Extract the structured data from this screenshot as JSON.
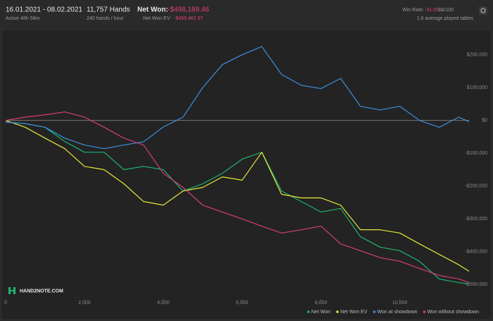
{
  "header": {
    "date_range": "16.01.2021 - 08.02.2021",
    "active": "Active 48h 58m",
    "hands": "11,757 Hands",
    "hands_per_hour": "240 hands / hour",
    "net_won_label": "Net Won:",
    "net_won": "-$498,189.46",
    "net_won_ev_label": "Net Won  EV:",
    "net_won_ev": "-$459,462.97",
    "win_rate_label": "Win Rate:",
    "win_rate": "-31.05",
    "win_rate_unit": "bb/100",
    "tables": "1.6 average played tables"
  },
  "logo": "HAND2NOTE.COM",
  "chart_data": {
    "type": "line",
    "x": [
      0,
      500,
      1000,
      1500,
      2000,
      2500,
      3000,
      3500,
      4000,
      4500,
      5000,
      5500,
      6000,
      6500,
      7000,
      7500,
      8000,
      8500,
      9000,
      9500,
      10000,
      10500,
      11000,
      11500,
      11757
    ],
    "series": [
      {
        "name": "Net Won",
        "color": "#1fb36e",
        "values": [
          -5000,
          -10000,
          -21000,
          -64000,
          -97000,
          -97000,
          -150000,
          -140000,
          -150000,
          -215000,
          -193000,
          -161000,
          -118000,
          -97000,
          -215000,
          -247000,
          -279000,
          -268000,
          -354000,
          -386000,
          -397000,
          -429000,
          -483000,
          -494000,
          -498189
        ]
      },
      {
        "name": "Net Won  EV",
        "color": "#e6e638",
        "values": [
          0,
          -21000,
          -54000,
          -86000,
          -140000,
          -150000,
          -193000,
          -247000,
          -258000,
          -215000,
          -204000,
          -172000,
          -182000,
          -97000,
          -225000,
          -236000,
          -236000,
          -258000,
          -333000,
          -333000,
          -343000,
          -376000,
          -408000,
          -440000,
          -459463
        ]
      },
      {
        "name": "Won at showdown",
        "color": "#3d8fe0",
        "values": [
          -5000,
          -10000,
          -21000,
          -54000,
          -75000,
          -86000,
          -75000,
          -65000,
          -20000,
          10000,
          100000,
          170000,
          200000,
          225000,
          140000,
          107000,
          97000,
          128000,
          43000,
          32000,
          43000,
          0,
          -21000,
          10000,
          -4000
        ]
      },
      {
        "name": "Won without showdown",
        "color": "#d63c7a",
        "values": [
          0,
          10000,
          17000,
          26000,
          10000,
          -21000,
          -54000,
          -75000,
          -161000,
          -204000,
          -258000,
          -279000,
          -300000,
          -322000,
          -343000,
          -333000,
          -322000,
          -376000,
          -397000,
          -418000,
          -429000,
          -451000,
          -472000,
          -483000,
          -494000
        ]
      }
    ],
    "xlim": [
      0,
      11757
    ],
    "xticks": [
      0,
      {
        "value": 2000,
        "label": "2,000"
      },
      {
        "value": 4000,
        "label": "4,000"
      },
      {
        "value": 6000,
        "label": "6,000"
      },
      {
        "value": 8000,
        "label": "8,000"
      },
      {
        "value": 10000,
        "label": "10,000"
      }
    ],
    "ylim": [
      -540000,
      255000
    ],
    "yticks": [
      {
        "value": 200000,
        "label": "$200,000"
      },
      {
        "value": 100000,
        "label": "$100,000"
      },
      {
        "value": 0,
        "label": "$0"
      },
      {
        "value": -100000,
        "label": "-$100,000"
      },
      {
        "value": -200000,
        "label": "-$200,000"
      },
      {
        "value": -300000,
        "label": "-$300,000"
      },
      {
        "value": -400000,
        "label": "-$400,000"
      },
      {
        "value": -500000,
        "label": "-$500,000"
      }
    ]
  }
}
